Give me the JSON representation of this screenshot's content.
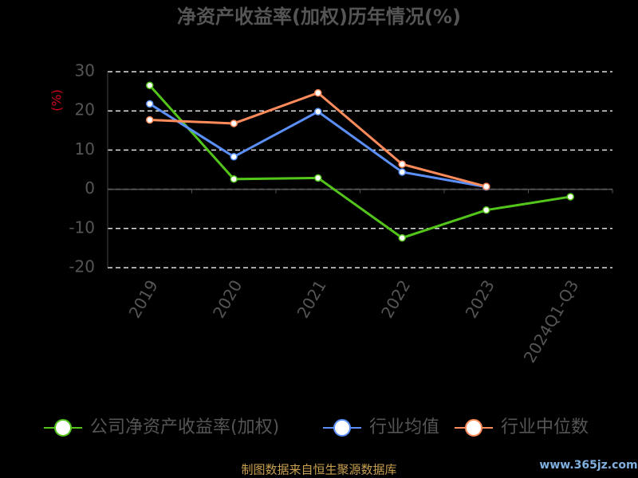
{
  "chart_data": {
    "type": "line",
    "title": "净资产收益率(加权)历年情况(%)",
    "y_label": "(%)",
    "categories": [
      "2019",
      "2020",
      "2021",
      "2022",
      "2023",
      "2024Q1-Q3"
    ],
    "series": [
      {
        "name": "公司净资产收益率(加权)",
        "color": "#52c41a",
        "values": [
          26.5,
          2.6,
          2.9,
          -12.4,
          -5.3,
          -1.9
        ]
      },
      {
        "name": "行业均值",
        "color": "#5b8ff9",
        "values": [
          21.8,
          8.3,
          19.8,
          4.4,
          0.6,
          null
        ]
      },
      {
        "name": "行业中位数",
        "color": "#ff8c5a",
        "values": [
          17.7,
          16.8,
          24.6,
          6.4,
          0.7,
          null
        ]
      }
    ],
    "ylim": [
      -20,
      30
    ],
    "yticks": [
      -20,
      -10,
      0,
      10,
      20,
      30
    ],
    "grid": true
  },
  "footer": "制图数据来自恒生聚源数据库",
  "watermark": "www.365jz.com"
}
